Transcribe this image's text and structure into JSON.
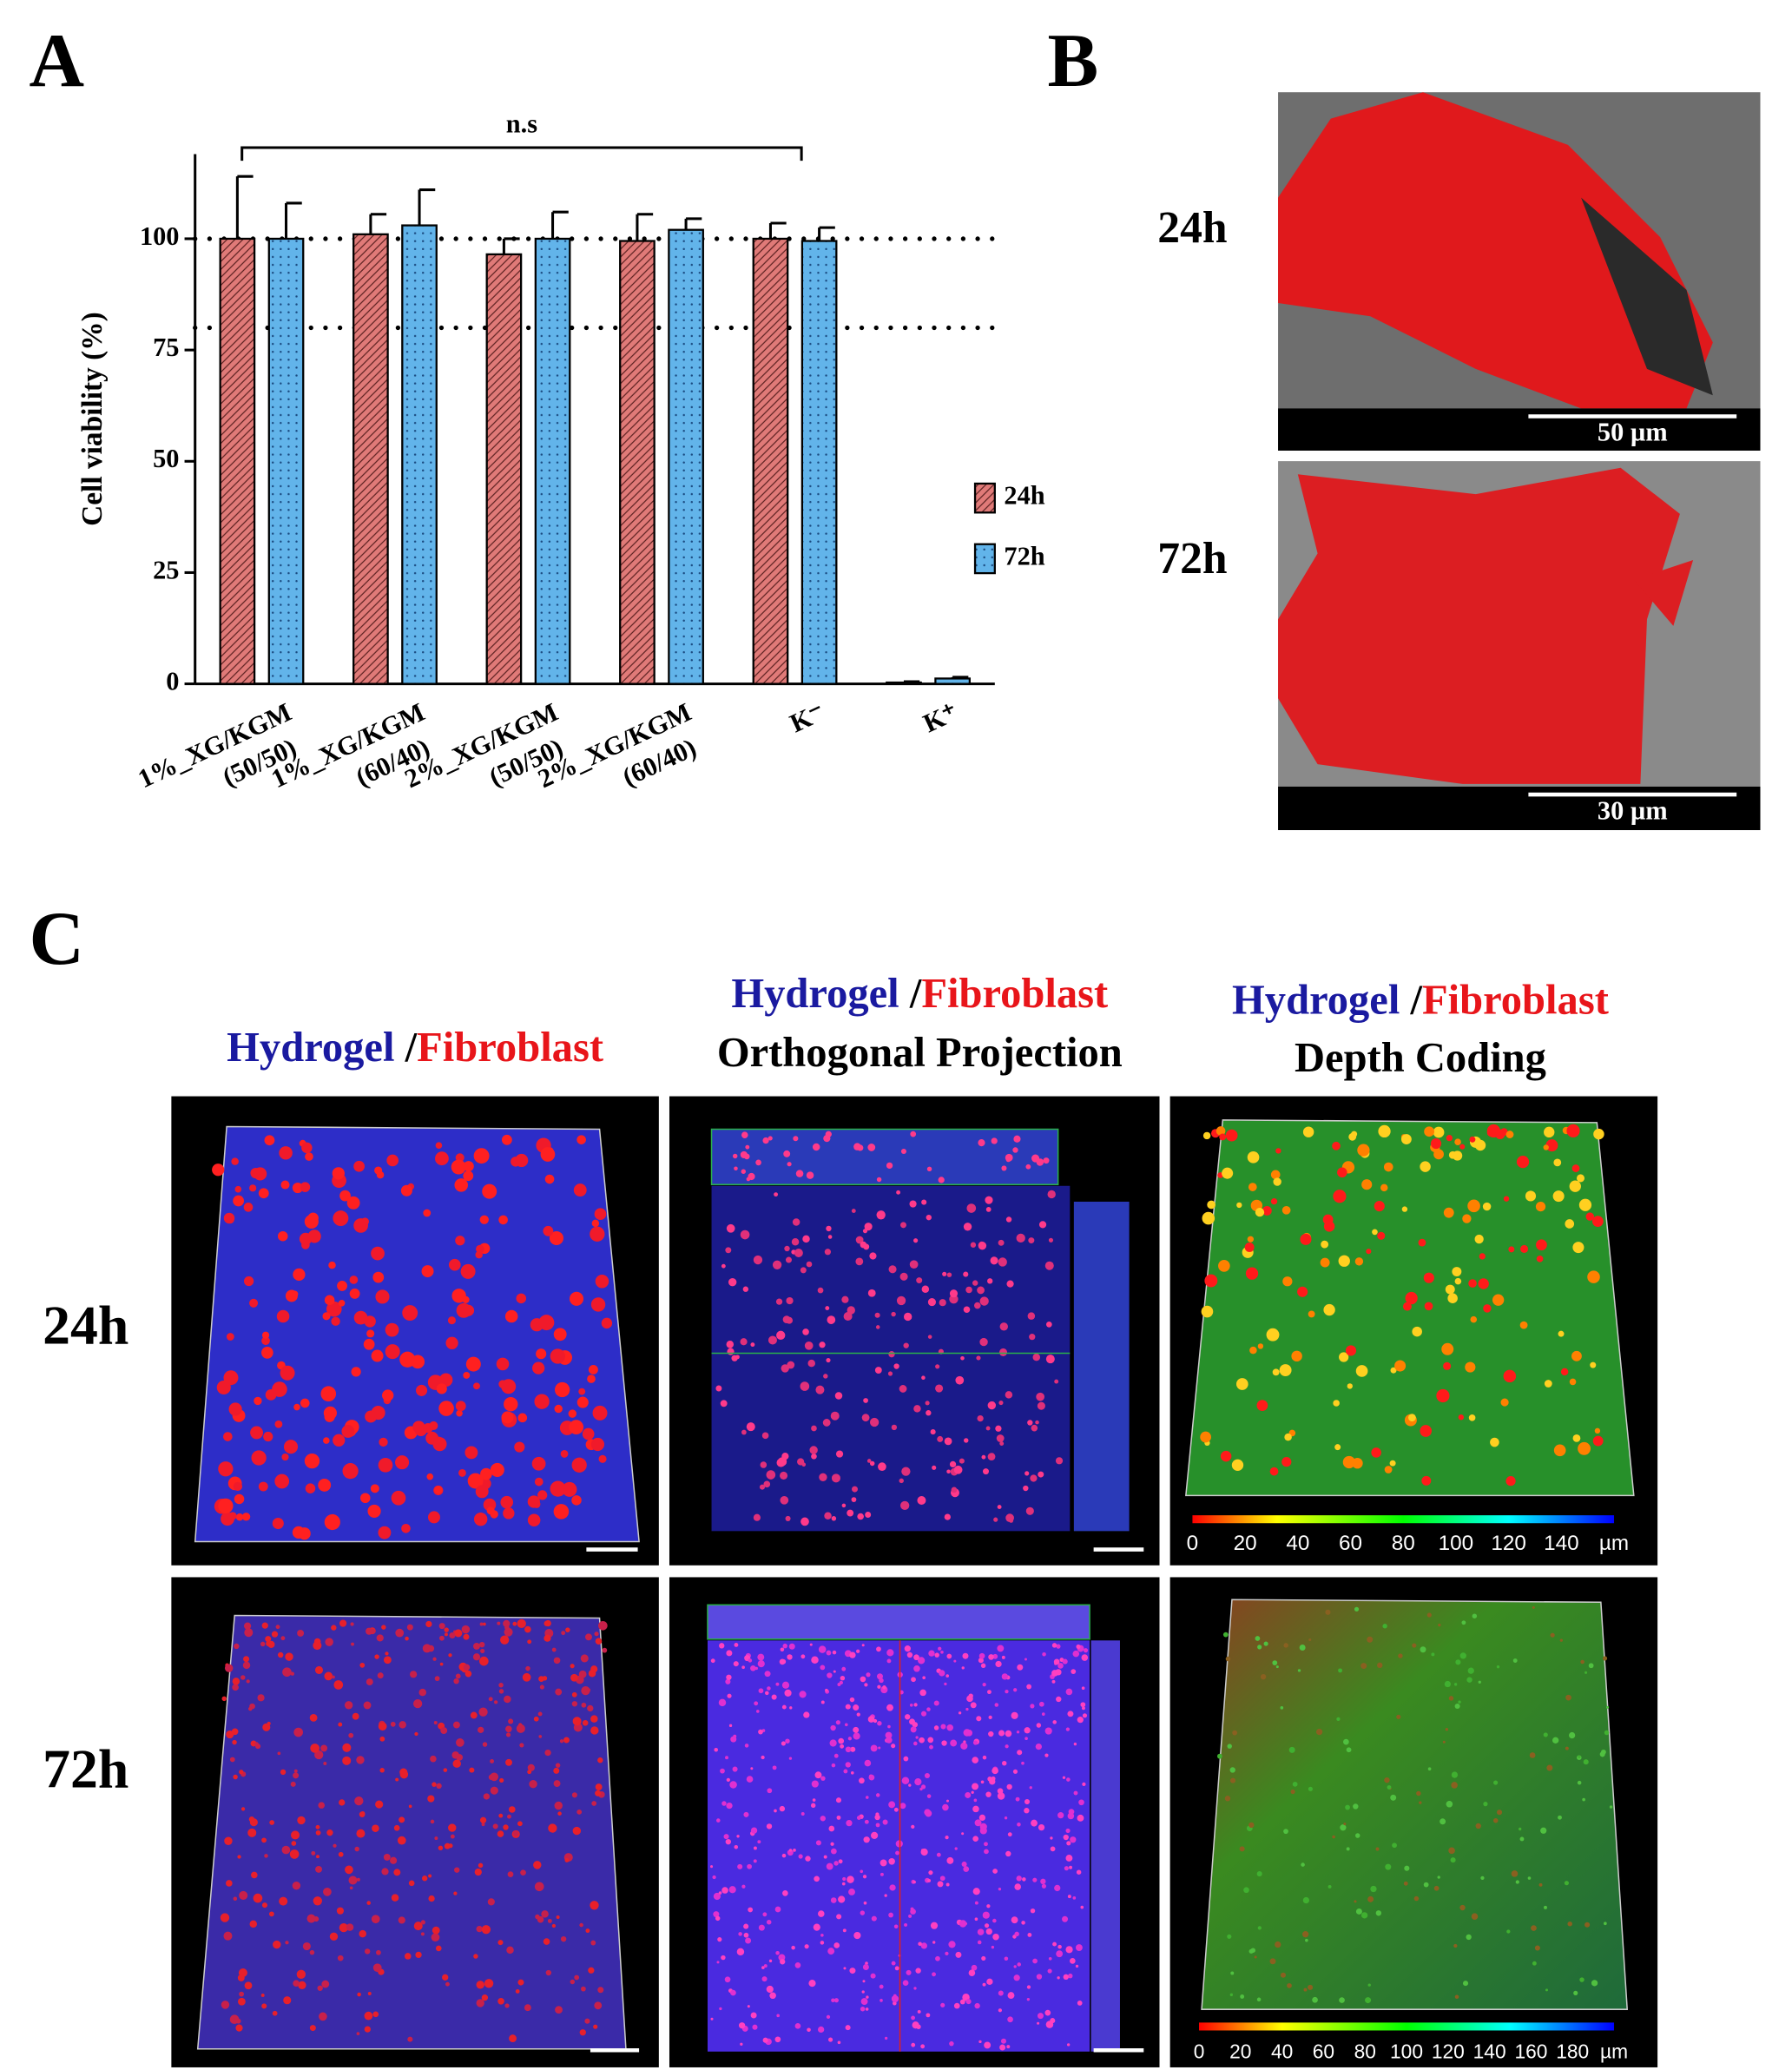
{
  "chart_data": {
    "type": "bar",
    "ylabel": "Cell viability (%)",
    "annotation": "n.s",
    "categories": [
      "1%_XG/KGM (50/50)",
      "1%_XG/KGM (60/40)",
      "2%_XG/KGM (50/50)",
      "2%_XG/KGM (60/40)",
      "K⁻",
      "K⁺"
    ],
    "series": [
      {
        "name": "24h",
        "color": "#e07a78",
        "pattern": "hatch",
        "values": [
          100,
          101,
          96.5,
          99.5,
          100,
          0.3
        ],
        "errors": [
          14,
          4.5,
          3.5,
          6,
          3.5,
          0.2
        ]
      },
      {
        "name": "72h",
        "color": "#62b4ea",
        "pattern": "dots",
        "values": [
          100,
          103,
          100,
          102,
          99.5,
          1.2
        ],
        "errors": [
          8,
          8,
          6,
          2.5,
          3,
          0.3
        ]
      }
    ],
    "ylim": [
      0,
      119
    ],
    "yticks": [
      0,
      25,
      50,
      75,
      100
    ],
    "reference_lines": [
      100,
      80
    ],
    "legend": "right"
  },
  "panel_labels": [
    "A",
    "B",
    "C"
  ],
  "panel_b": {
    "rows": [
      {
        "label": "24h",
        "scale_bar": "50 µm"
      },
      {
        "label": "72h",
        "scale_bar": "30 µm"
      }
    ]
  },
  "panel_c": {
    "headers": [
      {
        "parts": [
          "Hydrogel",
          "/",
          "Fibroblast"
        ]
      },
      {
        "parts": [
          "Hydrogel",
          "/",
          "Fibroblast"
        ],
        "subtitle": "Orthogonal Projection"
      },
      {
        "parts": [
          "Hydrogel",
          "/",
          "Fibroblast"
        ],
        "subtitle": "Depth Coding"
      }
    ],
    "rows": [
      "24h",
      "72h"
    ],
    "colorbars": [
      [
        "0",
        "20",
        "40",
        "60",
        "80",
        "100",
        "120",
        "140",
        "µm"
      ],
      [
        "0",
        "20",
        "40",
        "60",
        "80",
        "100",
        "120",
        "140",
        "160",
        "180",
        "µm"
      ]
    ]
  }
}
